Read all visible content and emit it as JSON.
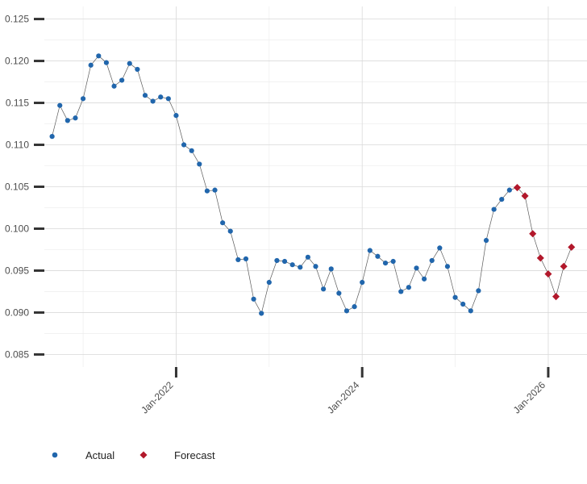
{
  "chart_data": {
    "type": "line",
    "x_axis": {
      "tick_labels": [
        "Jan-2022",
        "Jan-2024",
        "Jan-2026"
      ],
      "tick_dates": [
        "2022-01",
        "2024-01",
        "2026-01"
      ],
      "range": [
        "2020-08",
        "2026-06"
      ]
    },
    "y_axis": {
      "tick_labels": [
        "0.085",
        "0.090",
        "0.095",
        "0.100",
        "0.105",
        "0.110",
        "0.115",
        "0.120",
        "0.125"
      ],
      "ticks": [
        0.085,
        0.09,
        0.095,
        0.1,
        0.105,
        0.11,
        0.115,
        0.12,
        0.125
      ],
      "ylim": [
        0.0835,
        0.1265
      ]
    },
    "grid": true,
    "legend": {
      "position": "bottom-left"
    },
    "series": [
      {
        "name": "Actual",
        "color": "#2166ac",
        "marker": "circle",
        "x": [
          "2020-09",
          "2020-10",
          "2020-11",
          "2020-12",
          "2021-01",
          "2021-02",
          "2021-03",
          "2021-04",
          "2021-05",
          "2021-06",
          "2021-07",
          "2021-08",
          "2021-09",
          "2021-10",
          "2021-11",
          "2021-12",
          "2022-01",
          "2022-02",
          "2022-03",
          "2022-04",
          "2022-05",
          "2022-06",
          "2022-07",
          "2022-08",
          "2022-09",
          "2022-10",
          "2022-11",
          "2022-12",
          "2023-01",
          "2023-02",
          "2023-03",
          "2023-04",
          "2023-05",
          "2023-06",
          "2023-07",
          "2023-08",
          "2023-09",
          "2023-10",
          "2023-11",
          "2023-12",
          "2024-01",
          "2024-02",
          "2024-03",
          "2024-04",
          "2024-05",
          "2024-06",
          "2024-07",
          "2024-08",
          "2024-09",
          "2024-10",
          "2024-11",
          "2024-12",
          "2025-01",
          "2025-02",
          "2025-03",
          "2025-04",
          "2025-05",
          "2025-06",
          "2025-07"
        ],
        "y": [
          0.111,
          0.1147,
          0.1129,
          0.1132,
          0.1155,
          0.1195,
          0.1206,
          0.1198,
          0.117,
          0.1177,
          0.1197,
          0.119,
          0.1159,
          0.1152,
          0.1157,
          0.1155,
          0.1135,
          0.11,
          0.1093,
          0.1077,
          0.1045,
          0.1046,
          0.1007,
          0.0997,
          0.0963,
          0.0964,
          0.0916,
          0.0899,
          0.0936,
          0.0962,
          0.0961,
          0.0957,
          0.0954,
          0.0966,
          0.0955,
          0.0928,
          0.0952,
          0.0923,
          0.0902,
          0.0907,
          0.0936,
          0.0974,
          0.0967,
          0.0959,
          0.0961,
          0.0925,
          0.093,
          0.0953,
          0.094,
          0.0962,
          0.0977,
          0.0955,
          0.0918,
          0.091,
          0.0902,
          0.0926,
          0.0986,
          0.1023,
          0.1035
        ]
      },
      {
        "name": "Forecast",
        "color": "#b2182b",
        "marker": "diamond",
        "x": [
          "2025-09",
          "2025-10",
          "2025-11",
          "2025-12",
          "2026-01",
          "2026-02",
          "2026-03",
          "2026-04"
        ],
        "y": [
          0.1049,
          0.1039,
          0.0994,
          0.0965,
          0.0946,
          0.0919,
          0.0955,
          0.0978
        ]
      }
    ],
    "bridge": {
      "x": "2025-08",
      "y": 0.1046,
      "color": "#2166ac"
    }
  }
}
